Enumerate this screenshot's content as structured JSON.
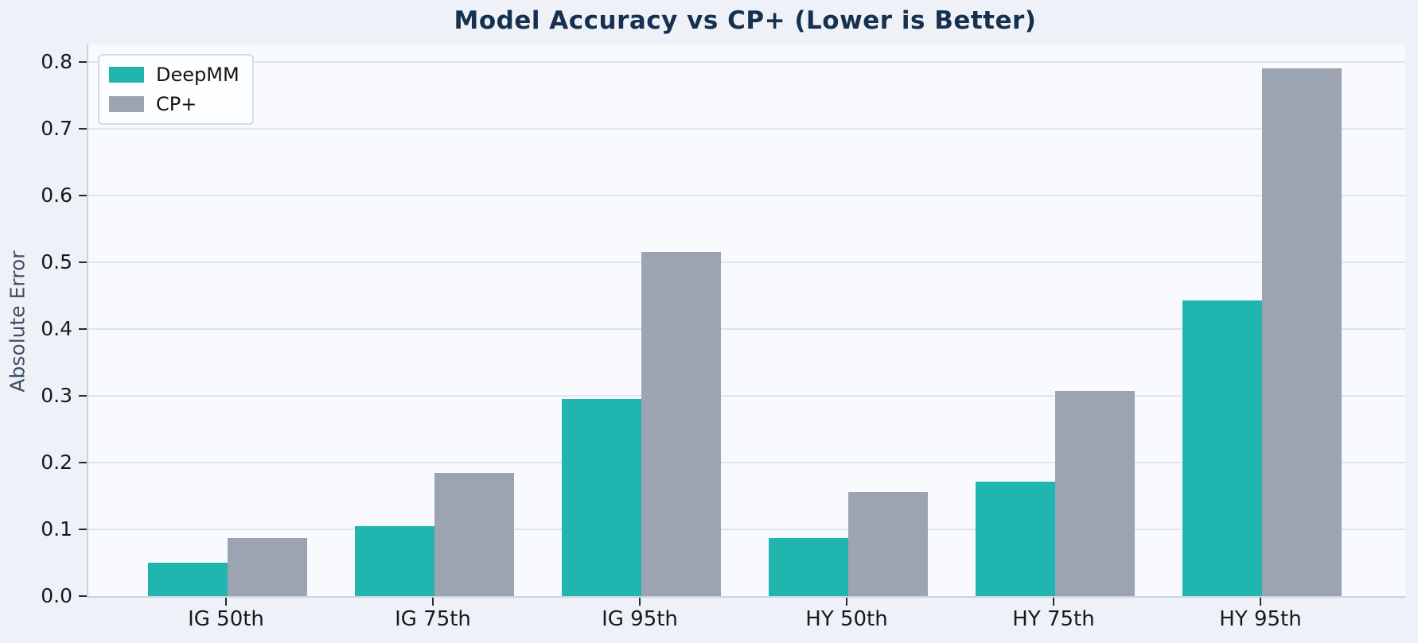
{
  "chart_data": {
    "type": "bar",
    "title": "Model Accuracy vs CP+ (Lower is Better)",
    "xlabel": "",
    "ylabel": "Absolute Error",
    "categories": [
      "IG 50th",
      "IG 75th",
      "IG 95th",
      "HY 50th",
      "HY 75th",
      "HY 95th"
    ],
    "series": [
      {
        "name": "DeepMM",
        "color": "#21b5b0",
        "values": [
          0.05,
          0.105,
          0.295,
          0.087,
          0.171,
          0.443
        ]
      },
      {
        "name": "CP+",
        "color": "#9ca4b2",
        "values": [
          0.087,
          0.184,
          0.515,
          0.156,
          0.307,
          0.79
        ]
      }
    ],
    "ylim": [
      0,
      0.826
    ],
    "ytick_labels": [
      "0.0",
      "0.1",
      "0.2",
      "0.3",
      "0.4",
      "0.5",
      "0.6",
      "0.7",
      "0.8"
    ],
    "grid": "horizontal",
    "legend_position": "upper-left"
  },
  "colors": {
    "outer_background": "#eef1f7",
    "plot_background": "#f8fafe",
    "gridline": "#dce5f0",
    "axis_spine": "#c8d4e3",
    "title_text": "#16304f",
    "axis_label_text": "#3e4f66",
    "tick_text": "#17191d"
  }
}
